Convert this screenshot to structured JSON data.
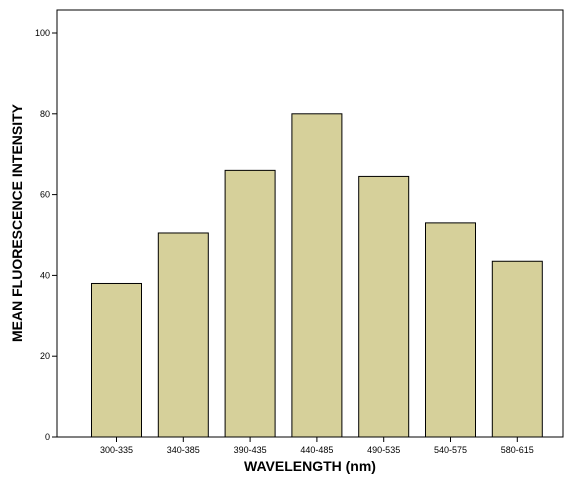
{
  "chart_data": {
    "type": "bar",
    "categories": [
      "300-335",
      "340-385",
      "390-435",
      "440-485",
      "490-535",
      "540-575",
      "580-615"
    ],
    "values": [
      38,
      50.5,
      66,
      80,
      64.5,
      53,
      43.5
    ],
    "xlabel": "WAVELENGTH (nm)",
    "ylabel": "MEAN FLUORESCENCE INTENSITY",
    "ylim": [
      0,
      100
    ],
    "yticks": [
      0,
      20,
      40,
      60,
      80,
      100
    ],
    "grid": false,
    "bar_color": "#d6d09a",
    "bar_edge_color": "#000000"
  }
}
